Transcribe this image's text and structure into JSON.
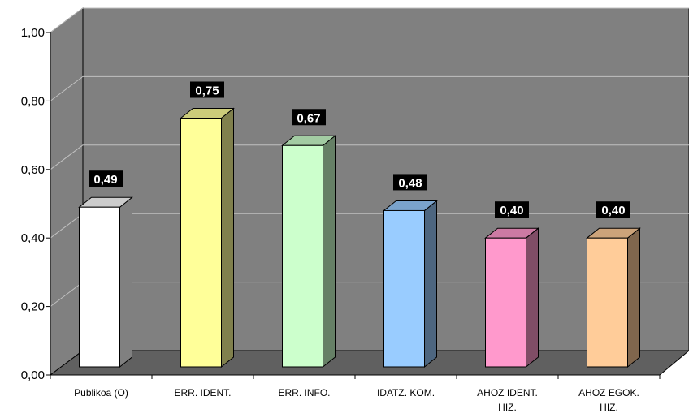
{
  "chart_data": {
    "type": "bar",
    "categories": [
      [
        "Publikoa (O)"
      ],
      [
        "ERR. IDENT."
      ],
      [
        "ERR. INFO."
      ],
      [
        "IDATZ. KOM."
      ],
      [
        "AHOZ IDENT.",
        "HIZ."
      ],
      [
        "AHOZ EGOK.",
        "HIZ."
      ]
    ],
    "values": [
      0.49,
      0.75,
      0.67,
      0.48,
      0.4,
      0.4
    ],
    "data_labels": [
      "0,49",
      "0,75",
      "0,67",
      "0,48",
      "0,40",
      "0,40"
    ],
    "y_ticks": [
      "0,00",
      "0,20",
      "0,40",
      "0,60",
      "0,80",
      "1,00"
    ],
    "ylim": [
      0,
      1
    ],
    "grid": true,
    "legend": "none",
    "colors": {
      "bars": [
        "#ffffff",
        "#ffff99",
        "#ccffcc",
        "#99ccff",
        "#ff99cc",
        "#ffcc99"
      ],
      "tops": [
        "#cccccc",
        "#cccc7a",
        "#a3cca3",
        "#7aa3cc",
        "#cc7aa3",
        "#cca37a"
      ],
      "sides": [
        "#808080",
        "#80804d",
        "#668066",
        "#4d6680",
        "#804d66",
        "#80664d"
      ],
      "back_wall": "#808080",
      "floor": "#606060",
      "gridline": "#c0c0c0",
      "label_bg": "#000000"
    }
  }
}
